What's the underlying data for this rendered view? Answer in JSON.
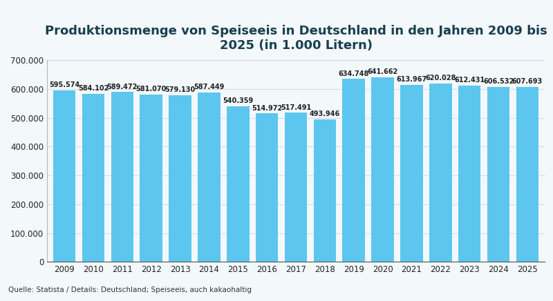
{
  "chart_data": {
    "type": "bar",
    "title": "Produktionsmenge von Speiseeis in Deutschland in den Jahren 2009 bis 2025 (in 1.000 Litern)",
    "categories": [
      "2009",
      "2010",
      "2011",
      "2012",
      "2013",
      "2014",
      "2015",
      "2016",
      "2017",
      "2018",
      "2019",
      "2020",
      "2021",
      "2022",
      "2023",
      "2024",
      "2025"
    ],
    "values": [
      595574,
      584102,
      589472,
      581070,
      579130,
      587449,
      540359,
      514972,
      517491,
      493946,
      634748,
      641662,
      613967,
      620028,
      612431,
      606532,
      607693
    ],
    "value_labels": [
      "595.574",
      "584.102",
      "589.472",
      "581.070",
      "579.130",
      "587.449",
      "540.359",
      "514.972",
      "517.491",
      "493.946",
      "634.748",
      "641.662",
      "613.967",
      "620.028",
      "612.431",
      "606.532",
      "607.693"
    ],
    "data_labels": true,
    "color": "#5cc6ee",
    "ylim": [
      0,
      700000
    ],
    "yticks": [
      0,
      {
        "value": 100000,
        "label": "100.000"
      },
      {
        "value": 200000,
        "label": "200.000"
      },
      {
        "value": 300000,
        "label": "300.000"
      },
      {
        "value": 400000,
        "label": "400.000"
      },
      {
        "value": 500000,
        "label": "500.000"
      },
      {
        "value": 600000,
        "label": "600.000"
      },
      {
        "value": 700000,
        "label": "700.000"
      }
    ],
    "grid": true,
    "annotations": [
      "Quelle: Statista / Details: Deutschland; Speiseeis, auch kakaohaltig"
    ]
  }
}
